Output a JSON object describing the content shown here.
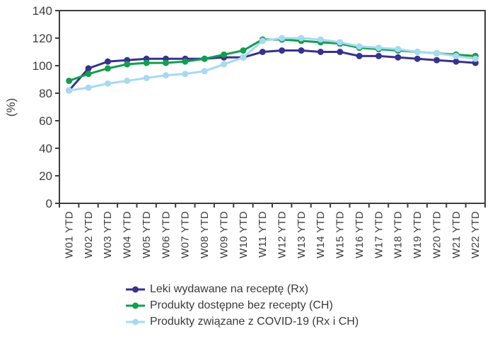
{
  "figure": {
    "background": "#ffffff",
    "axis_color": "#3d3d3d",
    "tick_label_color": "#3d3d3d",
    "plot_border": true
  },
  "chart_data": {
    "type": "line",
    "title": "",
    "xlabel": "",
    "ylabel": "(%)",
    "ylim": [
      0,
      140
    ],
    "ytick_step": 20,
    "grid": false,
    "legend_position": "bottom",
    "marker": "circle",
    "categories": [
      "W01 YTD",
      "W02 YTD",
      "W03 YTD",
      "W04 YTD",
      "W05 YTD",
      "W06 YTD",
      "W07 YTD",
      "W08 YTD",
      "W09 YTD",
      "W10 YTD",
      "W11 YTD",
      "W12 YTD",
      "W13 YTD",
      "W14 YTD",
      "W15 YTD",
      "W16 YTD",
      "W17 YTD",
      "W18 YTD",
      "W19 YTD",
      "W20 YTD",
      "W21 YTD",
      "W22 YTD"
    ],
    "series": [
      {
        "name": "Leki wydawane na receptę (Rx)",
        "color": "#37328f",
        "values": [
          82,
          98,
          103,
          104,
          105,
          105,
          105,
          105,
          106,
          106,
          110,
          111,
          111,
          110,
          110,
          107,
          107,
          106,
          105,
          104,
          103,
          102
        ]
      },
      {
        "name": "Produkty dostępne bez recepty (CH)",
        "color": "#129e4f",
        "values": [
          89,
          94,
          98,
          101,
          102,
          102,
          103,
          105,
          108,
          111,
          119,
          119,
          118,
          117,
          116,
          113,
          112,
          111,
          110,
          109,
          108,
          107
        ]
      },
      {
        "name": "Produkty związane z COVID-19 (Rx i CH)",
        "color": "#a7d9f2",
        "values": [
          82,
          84,
          87,
          89,
          91,
          93,
          94,
          96,
          101,
          106,
          118,
          120,
          120,
          119,
          117,
          114,
          113,
          112,
          110,
          109,
          107,
          105
        ]
      }
    ]
  }
}
